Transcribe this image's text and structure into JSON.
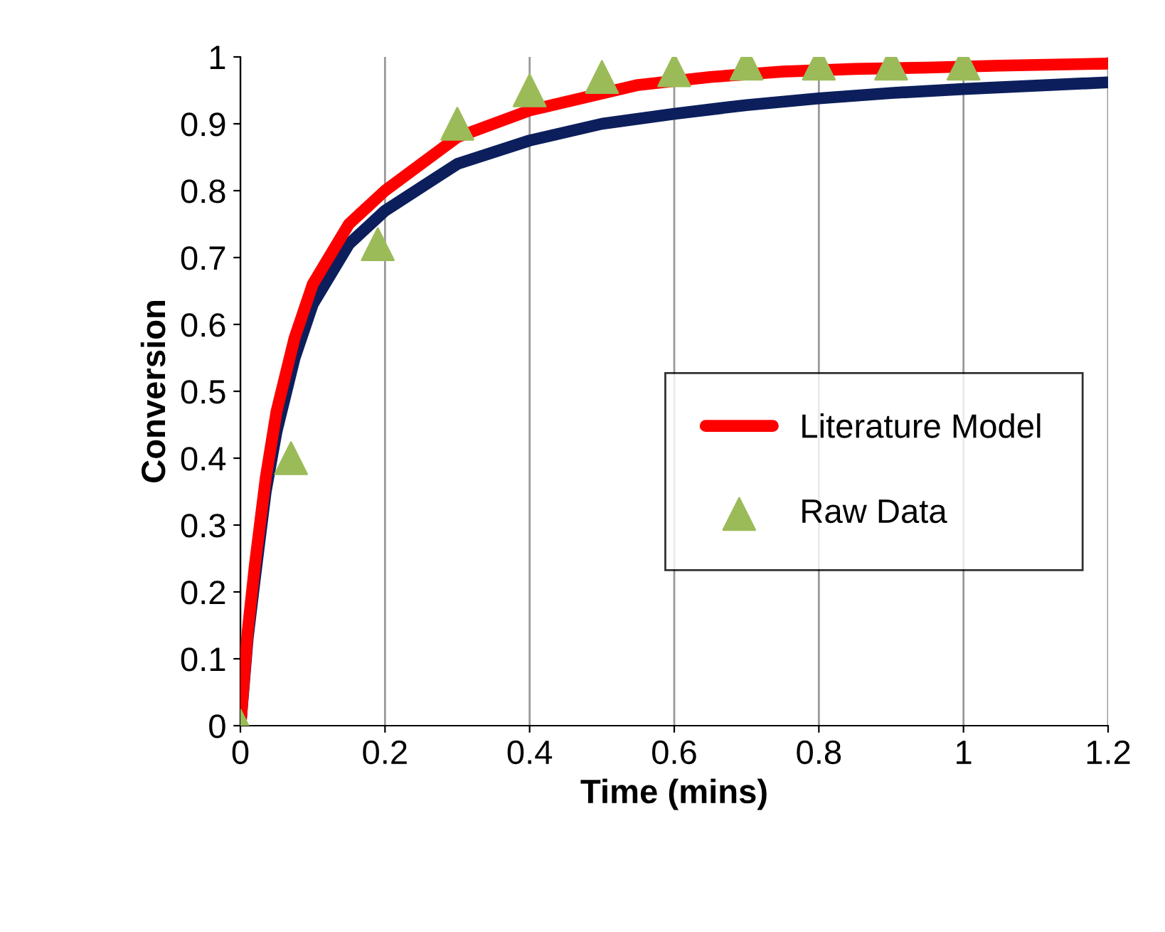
{
  "chart_data": {
    "type": "line",
    "xlabel": "Time (mins)",
    "ylabel": "Conversion",
    "xlim": [
      0,
      1.2
    ],
    "ylim": [
      0,
      1
    ],
    "xticks": [
      0,
      0.2,
      0.4,
      0.6,
      0.8,
      1,
      1.2
    ],
    "yticks": [
      0,
      0.1,
      0.2,
      0.3,
      0.4,
      0.5,
      0.6,
      0.7,
      0.8,
      0.9,
      1
    ],
    "grid": "x",
    "legend": "right",
    "series": [
      {
        "color": "#0c1f5c",
        "x": [
          0,
          0.01,
          0.02,
          0.035,
          0.05,
          0.075,
          0.1,
          0.15,
          0.2,
          0.3,
          0.4,
          0.5,
          0.6,
          0.7,
          0.8,
          0.9,
          1.0,
          1.1,
          1.2
        ],
        "values": [
          0,
          0.13,
          0.22,
          0.35,
          0.44,
          0.55,
          0.63,
          0.72,
          0.77,
          0.84,
          0.875,
          0.9,
          0.915,
          0.928,
          0.938,
          0.946,
          0.952,
          0.957,
          0.962
        ],
        "line_style": "solid",
        "marker": "none"
      },
      {
        "name": "Literature Model",
        "color": "#ff0000",
        "x": [
          0,
          0.01,
          0.02,
          0.035,
          0.05,
          0.075,
          0.1,
          0.15,
          0.2,
          0.3,
          0.4,
          0.55,
          0.65,
          0.75,
          0.85,
          0.95,
          1.05,
          1.2
        ],
        "values": [
          0,
          0.14,
          0.24,
          0.37,
          0.47,
          0.58,
          0.66,
          0.75,
          0.8,
          0.88,
          0.92,
          0.958,
          0.97,
          0.978,
          0.982,
          0.984,
          0.987,
          0.99
        ],
        "line_style": "solid",
        "marker": "none"
      },
      {
        "name": "Raw Data",
        "type": "scatter",
        "color": "#9bbb59",
        "marker": "triangle",
        "x": [
          0,
          0.07,
          0.19,
          0.3,
          0.4,
          0.5,
          0.6,
          0.7,
          0.8,
          0.9,
          1.0
        ],
        "values": [
          0,
          0.4,
          0.72,
          0.9,
          0.95,
          0.97,
          0.98,
          0.99,
          0.99,
          0.99,
          0.99
        ]
      }
    ]
  }
}
